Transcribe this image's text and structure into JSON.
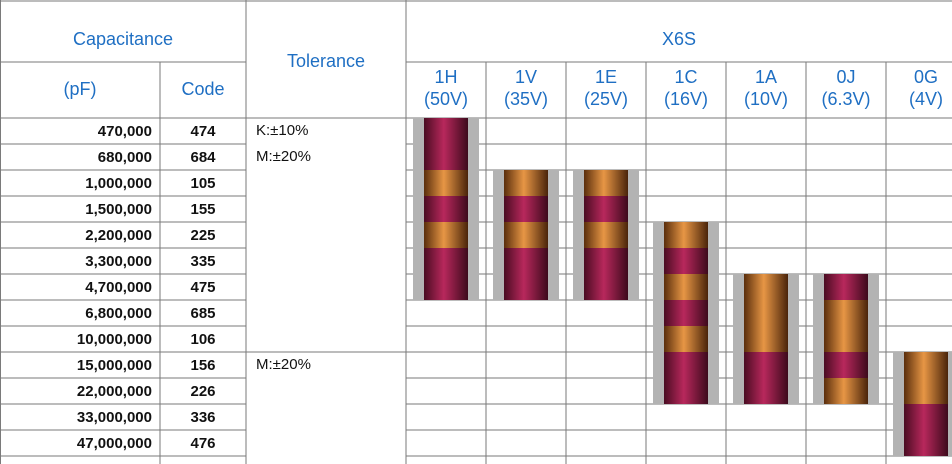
{
  "header": {
    "capacitance": "Capacitance",
    "unit": "(pF)",
    "code": "Code",
    "tolerance": "Tolerance",
    "series": "X6S",
    "voltages": [
      {
        "code": "1H",
        "rating": "(50V)"
      },
      {
        "code": "1V",
        "rating": "(35V)"
      },
      {
        "code": "1E",
        "rating": "(25V)"
      },
      {
        "code": "1C",
        "rating": "(16V)"
      },
      {
        "code": "1A",
        "rating": "(10V)"
      },
      {
        "code": "0J",
        "rating": "(6.3V)"
      },
      {
        "code": "0G",
        "rating": "(4V)"
      }
    ]
  },
  "tolerance_groups": [
    {
      "labels": [
        "K:±10%",
        "M:±20%"
      ],
      "rows": [
        [
          "470,000",
          "474"
        ],
        [
          "680,000",
          "684"
        ],
        [
          "1,000,000",
          "105"
        ],
        [
          "1,500,000",
          "155"
        ],
        [
          "2,200,000",
          "225"
        ],
        [
          "3,300,000",
          "335"
        ],
        [
          "4,700,000",
          "475"
        ],
        [
          "6,800,000",
          "685"
        ],
        [
          "10,000,000",
          "106"
        ]
      ]
    },
    {
      "labels": [
        "M:±20%"
      ],
      "rows": [
        [
          "15,000,000",
          "156"
        ],
        [
          "22,000,000",
          "226"
        ],
        [
          "33,000,000",
          "336"
        ],
        [
          "47,000,000",
          "476"
        ]
      ]
    }
  ]
}
